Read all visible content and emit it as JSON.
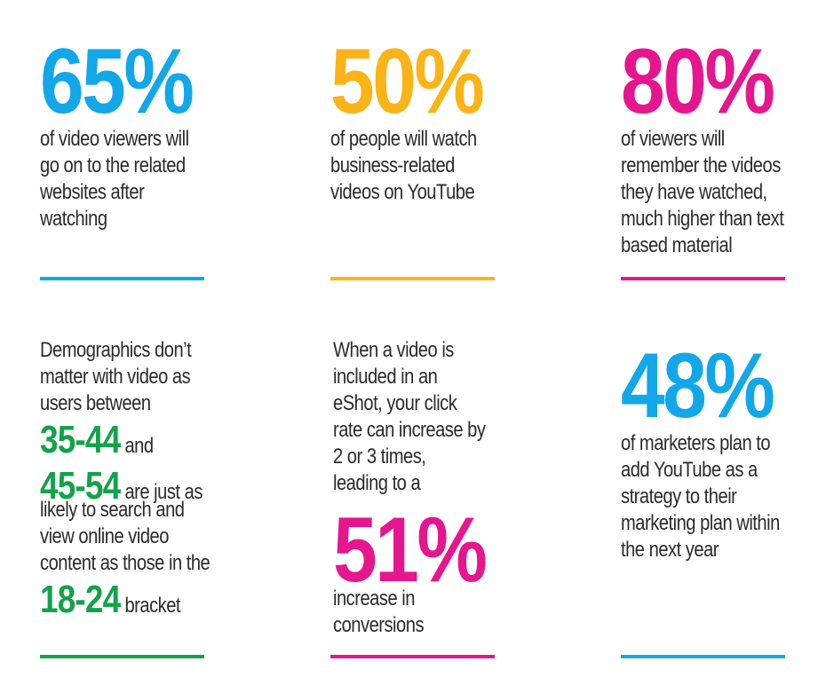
{
  "colors": {
    "blue": "#12a7e8",
    "yellow": "#fbb417",
    "pink": "#e5168e",
    "green": "#13a24a"
  },
  "stat1": {
    "value": "65%",
    "lines": [
      "of video viewers will",
      "go on to the related",
      "websites after",
      "watching"
    ]
  },
  "stat2": {
    "value": "50%",
    "lines": [
      "of people will watch",
      "business-related",
      "videos on YouTube"
    ]
  },
  "stat3": {
    "value": "80%",
    "lines": [
      "of viewers will",
      "remember the videos",
      "they have watched,",
      "much higher than text",
      "based material"
    ]
  },
  "demographics": {
    "lines": [
      "Demographics don’t",
      "matter with video as",
      "users between"
    ],
    "age1": "35-44",
    "after_age1": "and",
    "age2": "45-54",
    "after_age2": "are just as",
    "middle_lines": [
      "likely to search and",
      "view online video",
      "content as those in the"
    ],
    "age3": "18-24",
    "after_age3": "bracket"
  },
  "eshot": {
    "lines": [
      "When a video is",
      "included in an",
      "eShot, your click",
      "rate can increase by",
      "2 or 3 times,",
      "leading to a"
    ],
    "value": "51%",
    "after_lines": [
      "increase in",
      "conversions"
    ]
  },
  "stat6": {
    "value": "48%",
    "lines": [
      "of marketers plan to",
      "add YouTube as a",
      "strategy to their",
      "marketing plan within",
      "the next year"
    ]
  }
}
